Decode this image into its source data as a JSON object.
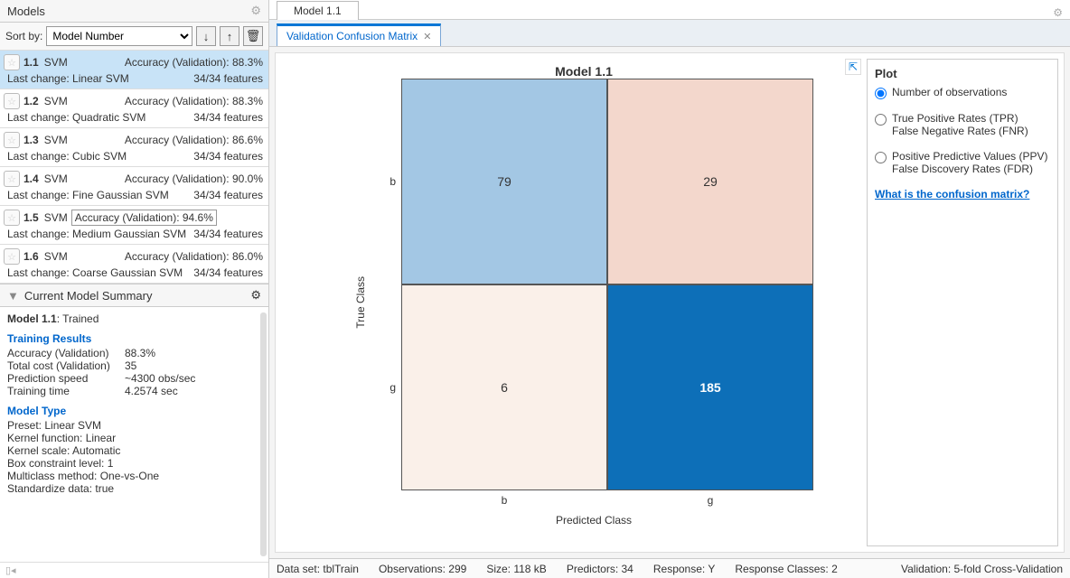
{
  "panels": {
    "models_title": "Models",
    "sort_label": "Sort by:",
    "sort_value": "Model Number"
  },
  "models": [
    {
      "num": "1.1",
      "type": "SVM",
      "acc_label": "Accuracy (Validation):",
      "acc": "88.3%",
      "change": "Last change: Linear SVM",
      "features": "34/34 features",
      "selected": true,
      "boxed": false
    },
    {
      "num": "1.2",
      "type": "SVM",
      "acc_label": "Accuracy (Validation):",
      "acc": "88.3%",
      "change": "Last change: Quadratic SVM",
      "features": "34/34 features",
      "selected": false,
      "boxed": false
    },
    {
      "num": "1.3",
      "type": "SVM",
      "acc_label": "Accuracy (Validation):",
      "acc": "86.6%",
      "change": "Last change: Cubic SVM",
      "features": "34/34 features",
      "selected": false,
      "boxed": false
    },
    {
      "num": "1.4",
      "type": "SVM",
      "acc_label": "Accuracy (Validation):",
      "acc": "90.0%",
      "change": "Last change: Fine Gaussian SVM",
      "features": "34/34 features",
      "selected": false,
      "boxed": false
    },
    {
      "num": "1.5",
      "type": "SVM",
      "acc_label": "Accuracy (Validation):",
      "acc": "94.6%",
      "change": "Last change: Medium Gaussian SVM",
      "features": "34/34 features",
      "selected": false,
      "boxed": true
    },
    {
      "num": "1.6",
      "type": "SVM",
      "acc_label": "Accuracy (Validation):",
      "acc": "86.0%",
      "change": "Last change: Coarse Gaussian SVM",
      "features": "34/34 features",
      "selected": false,
      "boxed": false
    }
  ],
  "summary": {
    "header": "Current Model Summary",
    "model_line": "Model 1.1: Trained",
    "training_header": "Training Results",
    "kv": [
      [
        "Accuracy (Validation)",
        "88.3%"
      ],
      [
        "Total cost (Validation)",
        "35"
      ],
      [
        "Prediction speed",
        "~4300 obs/sec"
      ],
      [
        "Training time",
        "4.2574 sec"
      ]
    ],
    "modeltype_header": "Model Type",
    "mt": [
      "Preset: Linear SVM",
      "Kernel function: Linear",
      "Kernel scale: Automatic",
      "Box constraint level: 1",
      "Multiclass method: One-vs-One",
      "Standardize data: true"
    ]
  },
  "tabs": {
    "top": "Model 1.1",
    "sub": "Validation Confusion Matrix"
  },
  "chart": {
    "title": "Model 1.1",
    "ylabel": "True Class",
    "xlabel": "Predicted Class",
    "yticks": [
      "b",
      "g"
    ],
    "xticks": [
      "b",
      "g"
    ],
    "cells": [
      {
        "value": "79",
        "bg": "#a3c7e4",
        "fg": "#333333",
        "bold": false
      },
      {
        "value": "29",
        "bg": "#f3d7cc",
        "fg": "#333333",
        "bold": false
      },
      {
        "value": "6",
        "bg": "#faf0e9",
        "fg": "#333333",
        "bold": false
      },
      {
        "value": "185",
        "bg": "#0d6fb8",
        "fg": "#ffffff",
        "bold": true
      }
    ],
    "border_color": "#555555"
  },
  "plot_options": {
    "header": "Plot",
    "options": [
      {
        "label": "Number of observations",
        "checked": true,
        "sub": null
      },
      {
        "label": "True Positive Rates (TPR)",
        "checked": false,
        "sub": "False Negative Rates (FNR)"
      },
      {
        "label": "Positive Predictive Values (PPV)",
        "checked": false,
        "sub": "False Discovery Rates (FDR)"
      }
    ],
    "link": "What is the confusion matrix?"
  },
  "status": {
    "items": [
      "Data set: tblTrain",
      "Observations: 299",
      "Size: 118 kB",
      "Predictors: 34",
      "Response: Y",
      "Response Classes: 2"
    ],
    "right": "Validation: 5-fold Cross-Validation"
  }
}
